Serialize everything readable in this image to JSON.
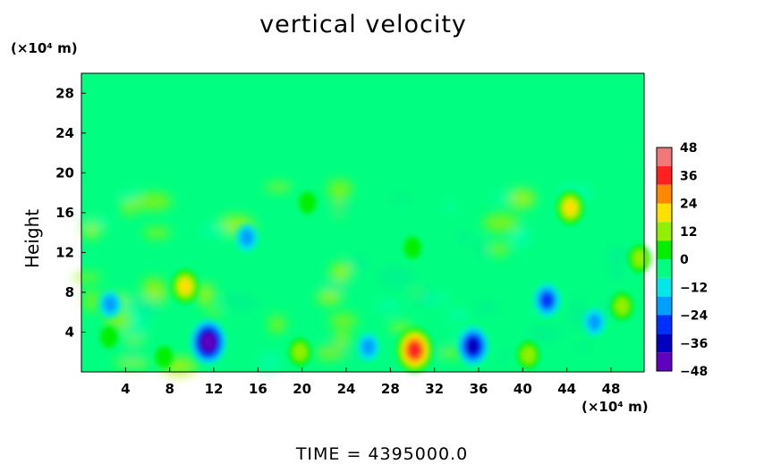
{
  "chart_data": {
    "type": "heatmap",
    "title": "vertical velocity",
    "ylabel": "Height",
    "y_unit_label": "(×10⁴ m)",
    "x_unit_label": "(×10⁴ m)",
    "footer": "TIME = 4395000.0",
    "x_range": [
      0,
      51
    ],
    "y_range": [
      0,
      30
    ],
    "x_ticks": [
      4,
      8,
      12,
      16,
      20,
      24,
      28,
      32,
      36,
      40,
      44,
      48
    ],
    "y_ticks": [
      4,
      8,
      12,
      16,
      20,
      24,
      28
    ],
    "colorbar": {
      "ticks": [
        48,
        36,
        24,
        12,
        0,
        -12,
        -24,
        -36,
        -48
      ],
      "range": [
        -48,
        48
      ],
      "colors": [
        "#f07878",
        "#ff2020",
        "#ff8800",
        "#ffe000",
        "#90f000",
        "#00f000",
        "#00ff80",
        "#00e8e8",
        "#00a0ff",
        "#0030ff",
        "#0000c0",
        "#6000c0"
      ]
    },
    "background_value": 0,
    "features": [
      {
        "kind": "updraft",
        "x": 30.2,
        "y": 2.2,
        "value": 34
      },
      {
        "kind": "updraft",
        "x": 44.3,
        "y": 16.5,
        "value": 20
      },
      {
        "kind": "updraft",
        "x": 9.4,
        "y": 8.6,
        "value": 20
      },
      {
        "kind": "updraft",
        "x": 50.6,
        "y": 11.4,
        "value": 13
      },
      {
        "kind": "updraft",
        "x": 49.0,
        "y": 6.6,
        "value": 12
      },
      {
        "kind": "updraft",
        "x": 19.8,
        "y": 2.0,
        "value": 10
      },
      {
        "kind": "updraft",
        "x": 40.5,
        "y": 1.7,
        "value": 10
      },
      {
        "kind": "updraft",
        "x": 7.5,
        "y": 1.5,
        "value": 8
      },
      {
        "kind": "updraft",
        "x": 2.5,
        "y": 3.5,
        "value": 6
      },
      {
        "kind": "updraft",
        "x": 20.5,
        "y": 17.0,
        "value": 8
      },
      {
        "kind": "updraft",
        "x": 30.0,
        "y": 12.5,
        "value": 7
      },
      {
        "kind": "downdraft",
        "x": 11.5,
        "y": 3.0,
        "value": -34
      },
      {
        "kind": "downdraft",
        "x": 35.5,
        "y": 2.6,
        "value": -30
      },
      {
        "kind": "downdraft",
        "x": 42.2,
        "y": 7.2,
        "value": -24
      },
      {
        "kind": "downdraft",
        "x": 2.6,
        "y": 6.8,
        "value": -12
      },
      {
        "kind": "downdraft",
        "x": 26.0,
        "y": 2.5,
        "value": -12
      },
      {
        "kind": "downdraft",
        "x": 46.5,
        "y": 5.0,
        "value": -12
      },
      {
        "kind": "downdraft",
        "x": 15.0,
        "y": 13.5,
        "value": -10
      }
    ]
  }
}
